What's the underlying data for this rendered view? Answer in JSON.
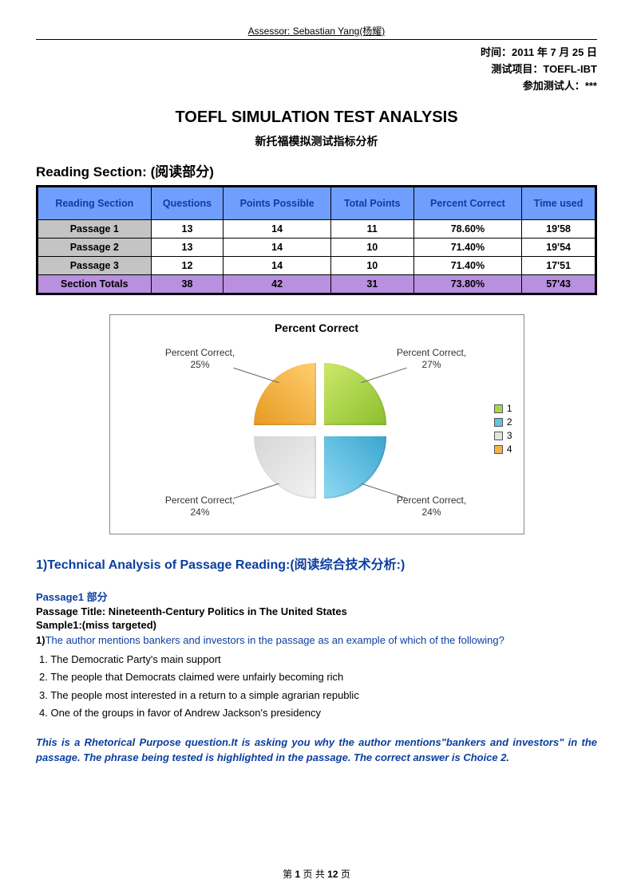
{
  "header": {
    "assessor": "Assessor: Sebastian Yang(杨耀)"
  },
  "meta": {
    "date_label": "时间：",
    "date_value": "2011 年 7 月 25 日",
    "project_label": "测试项目：",
    "project_value": "TOEFL-IBT",
    "participant_label": "参加测试人：",
    "participant_value": "***"
  },
  "titles": {
    "main": "TOEFL SIMULATION TEST ANALYSIS",
    "sub": "新托福模拟测试指标分析",
    "section": "Reading Section: (阅读部分)"
  },
  "table": {
    "headers": [
      "Reading Section",
      "Questions",
      "Points Possible",
      "Total Points",
      "Percent Correct",
      "Time used"
    ],
    "header_bg": "#6f9eff",
    "rows": [
      {
        "label": "Passage 1",
        "q": "13",
        "pp": "14",
        "tp": "11",
        "pc": "78.60%",
        "time": "19'58",
        "label_bg": "#c4c4c4"
      },
      {
        "label": "Passage 2",
        "q": "13",
        "pp": "14",
        "tp": "10",
        "pc": "71.40%",
        "time": "19'54",
        "label_bg": "#c4c4c4"
      },
      {
        "label": "Passage 3",
        "q": "12",
        "pp": "14",
        "tp": "10",
        "pc": "71.40%",
        "time": "17'51",
        "label_bg": "#c4c4c4"
      }
    ],
    "totals": {
      "label": "Section Totals",
      "q": "38",
      "pp": "42",
      "tp": "31",
      "pc": "73.80%",
      "time": "57'43",
      "bg": "#b98fe0"
    }
  },
  "chart": {
    "title": "Percent Correct",
    "slices": [
      {
        "label": "Percent Correct, 27%",
        "color_start": "#cde86a",
        "color_end": "#8bbf2e",
        "legend": "1"
      },
      {
        "label": "Percent Correct, 24%",
        "color_start": "#8fd9f2",
        "color_end": "#3aa6cf",
        "legend": "2"
      },
      {
        "label": "Percent Correct, 24%",
        "color_start": "#f2f2f2",
        "color_end": "#d6d6d6",
        "legend": "3"
      },
      {
        "label": "Percent Correct, 25%",
        "color_start": "#ffcf70",
        "color_end": "#e69a20",
        "legend": "4"
      }
    ],
    "legend_colors": [
      "#a8d651",
      "#5fc4e3",
      "#e3e3e3",
      "#f2b448"
    ]
  },
  "technical": {
    "heading": "1)Technical Analysis of Passage Reading:(阅读综合技术分析:)",
    "passage_label": "Passage1 部分",
    "passage_title": "Passage Title: Nineteenth-Century Politics in The United States",
    "sample_label": "Sample1:(miss targeted)",
    "question_num": "1)",
    "question_text": "The author mentions bankers and investors in the passage as an example of which of the following?",
    "choices": [
      "1.  The Democratic Party's main support",
      "2.  The people that Democrats claimed were unfairly becoming rich",
      "3.  The people most interested in a return to a simple agrarian republic",
      "4.  One of the groups in favor of Andrew Jackson's presidency"
    ],
    "explanation": "This is a Rhetorical Purpose question.It is asking you why the author mentions\"bankers and investors\" in the passage. The phrase being tested is highlighted in the passage. The correct answer is Choice 2."
  },
  "footer": {
    "text_before": "第 ",
    "page_current": "1",
    "text_mid": " 页 共 ",
    "page_total": "12",
    "text_after": " 页"
  }
}
